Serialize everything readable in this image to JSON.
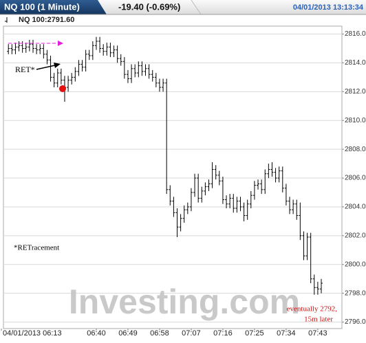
{
  "header": {
    "instrument": "NQ 100 (1 Minute)",
    "change": "-19.40 (-0.69%)",
    "timestamp": "04/01/2013 13:13:34"
  },
  "chart_data": {
    "type": "ohlc",
    "subtitle": "NQ 100:2791.60",
    "color": "#000000",
    "categories": [
      "04/01/2013 06:13",
      null,
      null,
      null,
      null,
      null,
      null,
      null,
      null,
      null,
      null,
      null,
      null,
      null,
      null,
      null,
      null,
      null,
      null,
      null,
      null,
      null,
      null,
      null,
      null,
      null,
      null,
      "06:40",
      null,
      null,
      null,
      null,
      null,
      null,
      null,
      null,
      "06:49",
      null,
      null,
      null,
      null,
      null,
      null,
      null,
      null,
      "06:58",
      null,
      null,
      null,
      null,
      null,
      null,
      null,
      null,
      "07:07",
      null,
      null,
      null,
      null,
      null,
      null,
      null,
      null,
      "07:16",
      null,
      null,
      null,
      null,
      null,
      null,
      null,
      null,
      "07:25",
      null,
      null,
      null,
      null,
      null,
      null,
      null,
      null,
      "07:34",
      null,
      null,
      null,
      null,
      null,
      null,
      null,
      null,
      "07:43",
      null
    ],
    "open": [
      null,
      null,
      2814.8,
      2815.0,
      2814.9,
      2815.1,
      2815.2,
      2815.0,
      2815.1,
      2815.3,
      2815.0,
      2814.9,
      2815.0,
      2814.6,
      2814.2,
      2813.0,
      2812.6,
      2813.3,
      2812.8,
      2812.3,
      2812.8,
      2813.0,
      2813.4,
      2813.9,
      2813.7,
      2814.6,
      2814.5,
      2815.2,
      2815.5,
      2815.0,
      2814.8,
      2815.1,
      2814.7,
      2814.9,
      2814.3,
      2814.1,
      2813.2,
      2812.9,
      2813.6,
      2813.3,
      2813.8,
      2813.4,
      2813.6,
      2813.2,
      2813.0,
      2812.6,
      2812.3,
      2812.6,
      2805.2,
      2804.4,
      2803.6,
      2802.6,
      2803.2,
      2803.8,
      2804.0,
      2805.0,
      2806.0,
      2804.6,
      2805.1,
      2805.4,
      2805.6,
      2806.6,
      2806.2,
      2805.8,
      2804.5,
      2804.2,
      2804.6,
      2803.9,
      2804.4,
      2804.0,
      2803.4,
      2804.2,
      2804.8,
      2805.5,
      2805.6,
      2805.2,
      2806.3,
      2806.6,
      2806.4,
      2806.0,
      2806.5,
      2805.3,
      2804.4,
      2803.8,
      2804.2,
      2803.4,
      2802.0,
      2800.6,
      2801.9,
      2799.0,
      2798.4,
      2798.3
    ],
    "high": [
      null,
      null,
      2815.3,
      2815.3,
      2815.4,
      2815.5,
      2815.5,
      2815.4,
      2815.6,
      2815.6,
      2815.3,
      2815.3,
      2815.3,
      2814.9,
      2814.5,
      2813.3,
      2813.6,
      2813.6,
      2813.1,
      2813.1,
      2813.3,
      2813.7,
      2814.2,
      2814.2,
      2814.9,
      2814.9,
      2815.5,
      2815.8,
      2815.8,
      2815.3,
      2815.4,
      2815.4,
      2815.2,
      2815.2,
      2814.6,
      2814.4,
      2813.5,
      2813.9,
      2813.9,
      2814.1,
      2814.1,
      2813.9,
      2813.9,
      2813.5,
      2813.3,
      2812.9,
      2812.9,
      2812.9,
      2805.5,
      2804.7,
      2803.9,
      2803.5,
      2804.1,
      2804.3,
      2805.3,
      2806.3,
      2806.3,
      2805.4,
      2805.7,
      2805.9,
      2807.1,
      2806.9,
      2806.5,
      2806.1,
      2804.8,
      2804.9,
      2804.9,
      2804.7,
      2804.7,
      2804.3,
      2804.5,
      2805.1,
      2805.8,
      2805.9,
      2805.9,
      2806.6,
      2807.0,
      2807.1,
      2806.7,
      2806.8,
      2806.8,
      2805.6,
      2804.7,
      2804.5,
      2804.5,
      2804.3,
      2802.3,
      2802.2,
      2802.2,
      2799.3,
      2798.8,
      2799.0
    ],
    "low": [
      null,
      null,
      2814.6,
      2814.6,
      2814.6,
      2814.8,
      2814.7,
      2814.7,
      2814.8,
      2814.7,
      2814.6,
      2814.6,
      2814.3,
      2813.9,
      2812.7,
      2812.3,
      2812.3,
      2812.5,
      2811.3,
      2812.0,
      2812.5,
      2812.7,
      2813.1,
      2813.4,
      2813.4,
      2814.2,
      2814.2,
      2814.9,
      2814.7,
      2814.5,
      2814.5,
      2814.4,
      2814.4,
      2814.0,
      2813.8,
      2812.9,
      2812.6,
      2812.6,
      2813.0,
      2813.0,
      2813.1,
      2813.1,
      2812.9,
      2812.7,
      2812.3,
      2812.0,
      2812.0,
      2804.9,
      2804.1,
      2803.3,
      2801.9,
      2802.3,
      2802.9,
      2803.5,
      2803.7,
      2804.7,
      2804.3,
      2804.3,
      2804.8,
      2805.1,
      2805.3,
      2805.9,
      2805.5,
      2804.2,
      2803.9,
      2803.9,
      2803.6,
      2803.6,
      2803.7,
      2803.0,
      2803.1,
      2803.9,
      2804.5,
      2805.2,
      2804.9,
      2804.9,
      2806.0,
      2806.1,
      2805.7,
      2805.7,
      2805.0,
      2804.1,
      2803.5,
      2803.5,
      2803.1,
      2801.7,
      2800.3,
      2800.3,
      2798.7,
      2797.9,
      2797.9,
      2798.0
    ],
    "close": [
      null,
      null,
      2815.0,
      2814.9,
      2815.1,
      2815.2,
      2815.0,
      2815.1,
      2815.3,
      2815.0,
      2814.9,
      2815.0,
      2814.6,
      2814.2,
      2813.0,
      2812.6,
      2813.3,
      2812.8,
      2812.3,
      2812.8,
      2813.0,
      2813.4,
      2813.9,
      2813.7,
      2814.6,
      2814.5,
      2815.2,
      2815.5,
      2815.0,
      2814.8,
      2815.1,
      2814.7,
      2814.9,
      2814.3,
      2814.1,
      2813.2,
      2812.9,
      2813.6,
      2813.3,
      2813.8,
      2813.4,
      2813.6,
      2813.2,
      2813.0,
      2812.6,
      2812.3,
      2812.6,
      2805.2,
      2804.4,
      2803.6,
      2802.6,
      2803.2,
      2803.8,
      2804.0,
      2805.0,
      2806.0,
      2804.6,
      2805.1,
      2805.4,
      2805.6,
      2806.6,
      2806.2,
      2805.8,
      2804.5,
      2804.2,
      2804.6,
      2803.9,
      2804.4,
      2804.0,
      2803.4,
      2804.2,
      2804.8,
      2805.5,
      2805.6,
      2805.2,
      2806.3,
      2806.6,
      2806.4,
      2806.0,
      2806.5,
      2805.3,
      2804.4,
      2803.8,
      2804.2,
      2803.4,
      2802.0,
      2800.6,
      2801.9,
      2799.0,
      2798.4,
      2798.3,
      2798.7
    ],
    "ylim": [
      2795.55,
      2816.55
    ],
    "yticks": [
      {
        "value": 2816,
        "label": "2816.00"
      },
      {
        "value": 2814,
        "label": "2814.00"
      },
      {
        "value": 2812,
        "label": "2812.00"
      },
      {
        "value": 2810,
        "label": "2810.00"
      },
      {
        "value": 2808,
        "label": "2808.00"
      },
      {
        "value": 2806,
        "label": "2806.00"
      },
      {
        "value": 2804,
        "label": "2804.00"
      },
      {
        "value": 2802,
        "label": "2802.00"
      },
      {
        "value": 2800,
        "label": "2800.00"
      },
      {
        "value": 2798,
        "label": "2798.00"
      },
      {
        "value": 2796,
        "label": "2796.00"
      }
    ],
    "grid": true,
    "annotations": {
      "ret": "RET*",
      "retracement": "*RETracement",
      "later": [
        "eventually 2792,",
        "15m later"
      ]
    },
    "watermark": "Investing.com"
  }
}
